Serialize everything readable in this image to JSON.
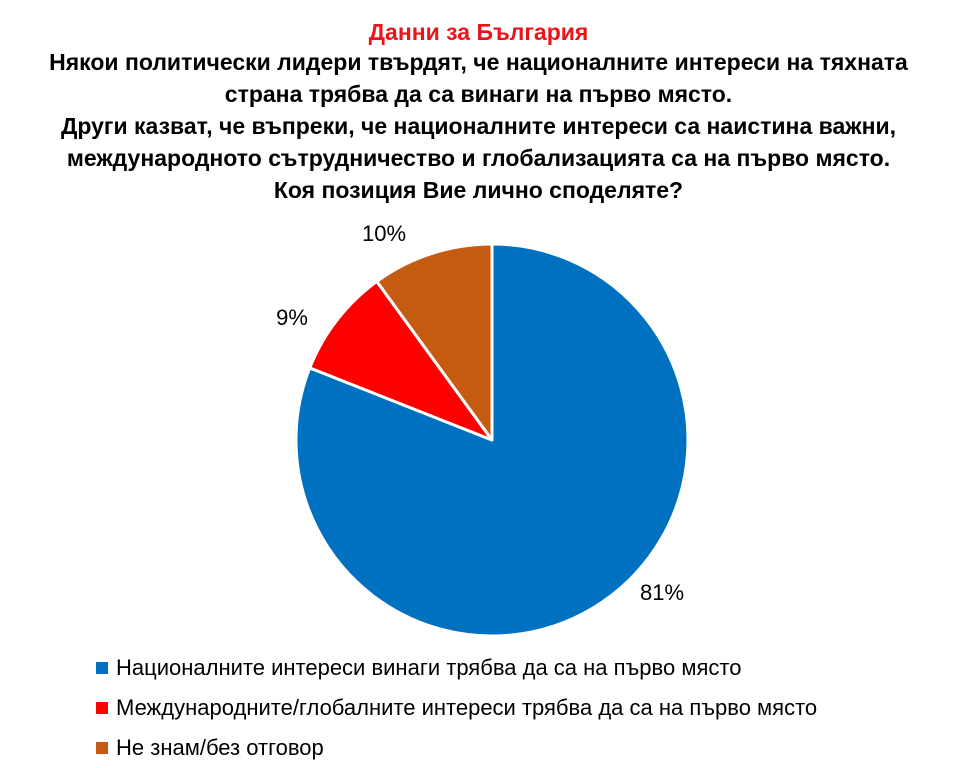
{
  "header": {
    "title": "Данни за България",
    "question_lines": [
      "Някои политически лидери твърдят, че националните интереси на тяхната",
      "страна трябва да са винаги на първо място.",
      "Други казват, че въпреки, че националните интереси са наистина важни,",
      "международното сътрудничество и глобализацията са на първо място.",
      "Коя позиция Вие лично споделяте?"
    ]
  },
  "colors": {
    "title": "#e8151b",
    "slice_edge": "#ffffff"
  },
  "chart_data": {
    "type": "pie",
    "slices": [
      {
        "name": "Националните интереси винаги трябва да са на първо място",
        "value": 81,
        "label": "81%",
        "color": "#0070c0"
      },
      {
        "name": "Международните/глобалните интереси трябва да са на първо място",
        "value": 9,
        "label": "9%",
        "color": "#ff0000"
      },
      {
        "name": "Не знам/без отговор",
        "value": 10,
        "label": "10%",
        "color": "#c55a11"
      }
    ],
    "start": "12 o'clock",
    "direction": "clockwise",
    "legend_position": "bottom"
  }
}
